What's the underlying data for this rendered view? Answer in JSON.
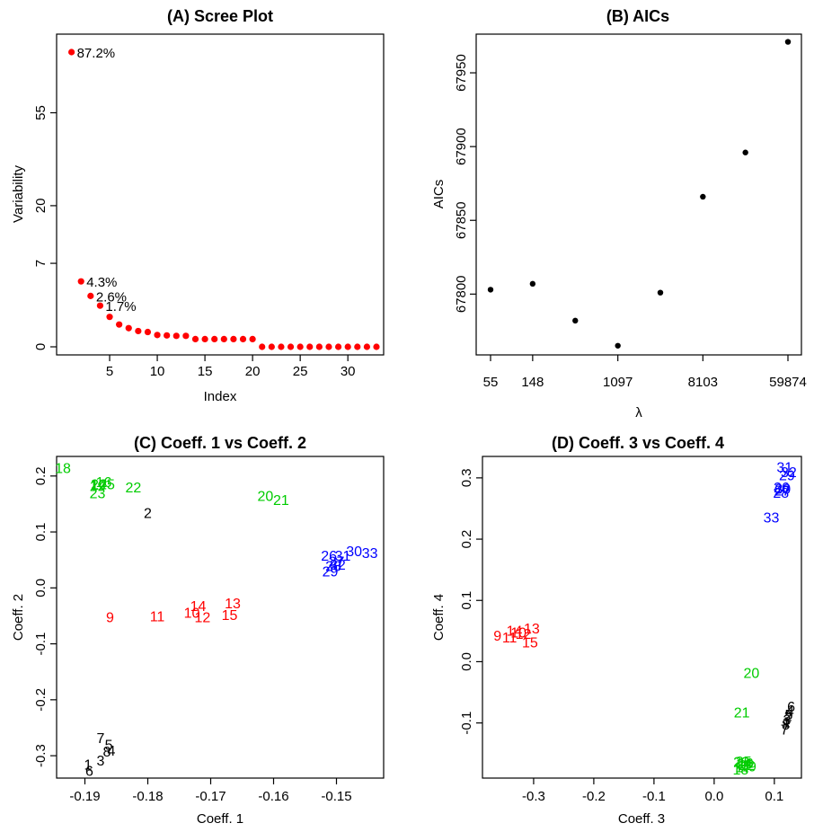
{
  "colors": {
    "points_A": "#ff0000",
    "points_B": "#000000",
    "cluster_black": "#000000",
    "cluster_green": "#00cc00",
    "cluster_red": "#ff0000",
    "cluster_blue": "#0000ff"
  },
  "chart_data": [
    {
      "id": "A",
      "type": "scatter",
      "title": "(A) Scree Plot",
      "xlabel": "Index",
      "ylabel": "Variability",
      "xlim": [
        0,
        33
      ],
      "y_scale": "sqrt",
      "xticks": [
        5,
        10,
        15,
        20,
        25,
        30
      ],
      "yticks": [
        0,
        7,
        20,
        55
      ],
      "x": [
        1,
        2,
        3,
        4,
        5,
        6,
        7,
        8,
        9,
        10,
        11,
        12,
        13,
        14,
        15,
        16,
        17,
        18,
        19,
        20,
        21,
        22,
        23,
        24,
        25,
        26,
        27,
        28,
        29,
        30,
        31,
        32,
        33
      ],
      "y": [
        87.2,
        4.3,
        2.6,
        1.7,
        0.9,
        0.5,
        0.35,
        0.25,
        0.22,
        0.14,
        0.13,
        0.12,
        0.12,
        0.06,
        0.06,
        0.06,
        0.06,
        0.06,
        0.06,
        0.06,
        0,
        0,
        0,
        0,
        0,
        0,
        0,
        0,
        0,
        0,
        0,
        0,
        0
      ],
      "annotations": [
        {
          "x": 1,
          "text": "87.2%"
        },
        {
          "x": 2,
          "text": "4.3%"
        },
        {
          "x": 3,
          "text": "2.6%"
        },
        {
          "x": 4,
          "text": "1.7%"
        }
      ]
    },
    {
      "id": "B",
      "type": "scatter",
      "title": "(B) AICs",
      "xlabel": "λ",
      "ylabel": "AICs",
      "x_scale": "log",
      "xticks": [
        55,
        148,
        1097,
        8103,
        59874
      ],
      "yticks": [
        67800,
        67850,
        67900,
        67950
      ],
      "ylim": [
        67760,
        67975
      ],
      "x": [
        55,
        148,
        403,
        1097,
        2981,
        8103,
        22026,
        59874
      ],
      "y": [
        67803,
        67807,
        67782,
        67765,
        67801,
        67866,
        67896,
        67971
      ]
    },
    {
      "id": "C",
      "type": "scatter",
      "title": "(C) Coeff. 1 vs Coeff. 2",
      "xlabel": "Coeff. 1",
      "ylabel": "Coeff. 2",
      "xlim": [
        -0.1945,
        -0.1425
      ],
      "ylim": [
        -0.34,
        0.235
      ],
      "xticks": [
        -0.19,
        -0.18,
        -0.17,
        -0.16,
        -0.15
      ],
      "ytick_labels": [
        "-0.3",
        "-0.2",
        "-0.1",
        "0.0",
        "0.1",
        "0.2"
      ],
      "yticks": [
        -0.3,
        -0.2,
        -0.1,
        0.0,
        0.1,
        0.2
      ],
      "points": [
        {
          "label": "1",
          "x": -0.1895,
          "y": -0.315,
          "c": "cluster_black"
        },
        {
          "label": "2",
          "x": -0.18,
          "y": 0.135,
          "c": "cluster_black"
        },
        {
          "label": "3",
          "x": -0.1875,
          "y": -0.308,
          "c": "cluster_black"
        },
        {
          "label": "4",
          "x": -0.1858,
          "y": -0.29,
          "c": "cluster_black"
        },
        {
          "label": "5",
          "x": -0.1862,
          "y": -0.28,
          "c": "cluster_black"
        },
        {
          "label": "6",
          "x": -0.1893,
          "y": -0.326,
          "c": "cluster_black"
        },
        {
          "label": "7",
          "x": -0.1875,
          "y": -0.268,
          "c": "cluster_black"
        },
        {
          "label": "8",
          "x": -0.1865,
          "y": -0.292,
          "c": "cluster_black"
        },
        {
          "label": "9",
          "x": -0.186,
          "y": -0.052,
          "c": "cluster_red"
        },
        {
          "label": "10",
          "x": -0.173,
          "y": -0.044,
          "c": "cluster_red"
        },
        {
          "label": "11",
          "x": -0.1785,
          "y": -0.05,
          "c": "cluster_red"
        },
        {
          "label": "12",
          "x": -0.1713,
          "y": -0.052,
          "c": "cluster_red"
        },
        {
          "label": "13",
          "x": -0.1665,
          "y": -0.027,
          "c": "cluster_red"
        },
        {
          "label": "14",
          "x": -0.172,
          "y": -0.032,
          "c": "cluster_red"
        },
        {
          "label": "15",
          "x": -0.167,
          "y": -0.048,
          "c": "cluster_red"
        },
        {
          "label": "16",
          "x": -0.187,
          "y": 0.19,
          "c": "cluster_green"
        },
        {
          "label": "17",
          "x": -0.1878,
          "y": 0.185,
          "c": "cluster_green"
        },
        {
          "label": "18",
          "x": -0.1935,
          "y": 0.215,
          "c": "cluster_green"
        },
        {
          "label": "19",
          "x": -0.188,
          "y": 0.183,
          "c": "cluster_green"
        },
        {
          "label": "20",
          "x": -0.1613,
          "y": 0.165,
          "c": "cluster_green"
        },
        {
          "label": "21",
          "x": -0.1588,
          "y": 0.158,
          "c": "cluster_green"
        },
        {
          "label": "22",
          "x": -0.1823,
          "y": 0.18,
          "c": "cluster_green"
        },
        {
          "label": "23",
          "x": -0.188,
          "y": 0.17,
          "c": "cluster_green"
        },
        {
          "label": "24",
          "x": -0.1878,
          "y": 0.186,
          "c": "cluster_green"
        },
        {
          "label": "25",
          "x": -0.1865,
          "y": 0.186,
          "c": "cluster_green"
        },
        {
          "label": "26",
          "x": -0.1512,
          "y": 0.058,
          "c": "cluster_blue"
        },
        {
          "label": "27",
          "x": -0.15,
          "y": 0.048,
          "c": "cluster_blue"
        },
        {
          "label": "28",
          "x": -0.1505,
          "y": 0.04,
          "c": "cluster_blue"
        },
        {
          "label": "29",
          "x": -0.151,
          "y": 0.03,
          "c": "cluster_blue"
        },
        {
          "label": "30",
          "x": -0.1472,
          "y": 0.066,
          "c": "cluster_blue"
        },
        {
          "label": "31",
          "x": -0.149,
          "y": 0.058,
          "c": "cluster_blue"
        },
        {
          "label": "32",
          "x": -0.1498,
          "y": 0.042,
          "c": "cluster_blue"
        },
        {
          "label": "33",
          "x": -0.1447,
          "y": 0.063,
          "c": "cluster_blue"
        }
      ]
    },
    {
      "id": "D",
      "type": "scatter",
      "title": "(D) Coeff. 3 vs Coeff. 4",
      "xlabel": "Coeff. 3",
      "ylabel": "Coeff. 4",
      "xlim": [
        -0.385,
        0.145
      ],
      "ylim": [
        -0.19,
        0.335
      ],
      "xticks": [
        -0.3,
        -0.2,
        -0.1,
        0.0,
        0.1
      ],
      "xtick_labels": [
        "-0.3",
        "-0.2",
        "-0.1",
        "0.0",
        "0.1"
      ],
      "yticks": [
        -0.1,
        0.0,
        0.1,
        0.2,
        0.3
      ],
      "ytick_labels": [
        "-0.1",
        "0.0",
        "0.1",
        "0.2",
        "0.3"
      ],
      "points": [
        {
          "label": "1",
          "x": 0.12,
          "y": -0.098,
          "c": "cluster_black"
        },
        {
          "label": "2",
          "x": 0.123,
          "y": -0.088,
          "c": "cluster_black"
        },
        {
          "label": "3",
          "x": 0.121,
          "y": -0.094,
          "c": "cluster_black"
        },
        {
          "label": "4",
          "x": 0.126,
          "y": -0.08,
          "c": "cluster_black"
        },
        {
          "label": "5",
          "x": 0.124,
          "y": -0.086,
          "c": "cluster_black"
        },
        {
          "label": "6",
          "x": 0.128,
          "y": -0.073,
          "c": "cluster_black"
        },
        {
          "label": "7",
          "x": 0.117,
          "y": -0.11,
          "c": "cluster_black"
        },
        {
          "label": "8",
          "x": 0.119,
          "y": -0.102,
          "c": "cluster_black"
        },
        {
          "label": "9",
          "x": -0.36,
          "y": 0.043,
          "c": "cluster_red"
        },
        {
          "label": "10",
          "x": -0.325,
          "y": 0.048,
          "c": "cluster_red"
        },
        {
          "label": "11",
          "x": -0.34,
          "y": 0.04,
          "c": "cluster_red"
        },
        {
          "label": "12",
          "x": -0.317,
          "y": 0.046,
          "c": "cluster_red"
        },
        {
          "label": "13",
          "x": -0.303,
          "y": 0.055,
          "c": "cluster_red"
        },
        {
          "label": "14",
          "x": -0.332,
          "y": 0.051,
          "c": "cluster_red"
        },
        {
          "label": "15",
          "x": -0.306,
          "y": 0.032,
          "c": "cluster_red"
        },
        {
          "label": "16",
          "x": 0.052,
          "y": -0.165,
          "c": "cluster_green"
        },
        {
          "label": "17",
          "x": 0.048,
          "y": -0.172,
          "c": "cluster_green"
        },
        {
          "label": "18",
          "x": 0.044,
          "y": -0.175,
          "c": "cluster_green"
        },
        {
          "label": "19",
          "x": 0.057,
          "y": -0.17,
          "c": "cluster_green"
        },
        {
          "label": "20",
          "x": 0.062,
          "y": -0.018,
          "c": "cluster_green"
        },
        {
          "label": "21",
          "x": 0.046,
          "y": -0.082,
          "c": "cluster_green"
        },
        {
          "label": "22",
          "x": 0.054,
          "y": -0.168,
          "c": "cluster_green"
        },
        {
          "label": "23",
          "x": 0.045,
          "y": -0.163,
          "c": "cluster_green"
        },
        {
          "label": "24",
          "x": 0.05,
          "y": -0.166,
          "c": "cluster_green"
        },
        {
          "label": "25",
          "x": 0.049,
          "y": -0.162,
          "c": "cluster_green"
        },
        {
          "label": "26",
          "x": 0.112,
          "y": 0.285,
          "c": "cluster_blue"
        },
        {
          "label": "27",
          "x": 0.113,
          "y": 0.28,
          "c": "cluster_blue"
        },
        {
          "label": "28",
          "x": 0.111,
          "y": 0.276,
          "c": "cluster_blue"
        },
        {
          "label": "29",
          "x": 0.121,
          "y": 0.305,
          "c": "cluster_blue"
        },
        {
          "label": "30",
          "x": 0.114,
          "y": 0.283,
          "c": "cluster_blue"
        },
        {
          "label": "31",
          "x": 0.117,
          "y": 0.318,
          "c": "cluster_blue"
        },
        {
          "label": "32",
          "x": 0.124,
          "y": 0.31,
          "c": "cluster_blue"
        },
        {
          "label": "33",
          "x": 0.095,
          "y": 0.236,
          "c": "cluster_blue"
        }
      ]
    }
  ]
}
